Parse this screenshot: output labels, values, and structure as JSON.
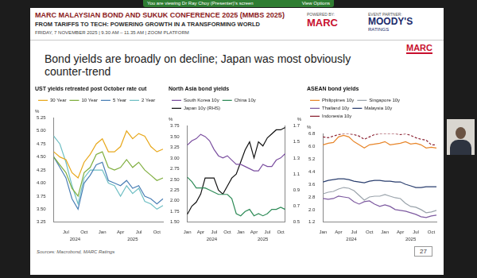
{
  "zoom_bar": {
    "text": "You are viewing Dr Ray Choy (Presenter)'s screen",
    "button": "View Options"
  },
  "header": {
    "title": "MARC MALAYSIAN BOND AND SUKUK CONFERENCE 2025 (MMBS 2025)",
    "subtitle": "FROM TARIFFS TO TECH: POWERING GROWTH IN A TRANSFORMING WORLD",
    "details": "FRIDAY, 7 NOVEMBER 2025  |  9.30 AM – 11.35 AM  |  ZOOM PLATFORM",
    "powered_by_label": "POWERED BY:",
    "powered_by": "MARC",
    "partner_label": "EVENT PARTNER:",
    "partner": "MOODY'S",
    "partner_sub": "RATINGS"
  },
  "slide": {
    "logo": "MARC",
    "title": "Bond yields are broadly on decline; Japan was most obviously counter-trend",
    "source": "Sources: Macrobond, MARC Ratings",
    "page": "27"
  },
  "chart_data": [
    {
      "type": "line",
      "title": "UST yields retreated post October rate cut",
      "categories": [
        null,
        null,
        "Jul",
        null,
        null,
        "Oct",
        null,
        null,
        "Jan",
        null,
        null,
        "Apr",
        null,
        null,
        "Jul",
        null,
        null,
        "Oct",
        null
      ],
      "x_groups": [
        {
          "label": "2024",
          "from": 0,
          "to": 7
        },
        {
          "label": "2025",
          "from": 8,
          "to": 18
        }
      ],
      "ylabel": "%",
      "ylim": [
        3.25,
        5.25
      ],
      "yticks": [
        3.25,
        {
          "value": 3.5,
          "label": "3.50"
        },
        3.75,
        {
          "value": 4,
          "label": "4.00"
        },
        4.25,
        {
          "value": 4.5,
          "label": "4.50"
        },
        4.75,
        {
          "value": 5,
          "label": "5.00"
        },
        5.25
      ],
      "grid": false,
      "legend": "top",
      "series": [
        {
          "name": "30 Year",
          "color": "#e8a81c",
          "values": [
            4.6,
            4.5,
            4.45,
            4.2,
            4.1,
            4.4,
            4.55,
            4.75,
            4.85,
            4.6,
            4.6,
            4.7,
            5.0,
            4.85,
            4.95,
            4.9,
            4.7,
            4.6,
            4.65
          ]
        },
        {
          "name": "10 Year",
          "color": "#7fae3e",
          "values": [
            4.5,
            4.35,
            4.2,
            3.9,
            3.75,
            4.2,
            4.3,
            4.55,
            4.6,
            4.3,
            4.25,
            4.3,
            4.45,
            4.3,
            4.4,
            4.25,
            4.15,
            4.05,
            4.1
          ]
        },
        {
          "name": "5 Year",
          "color": "#4a7fb5",
          "values": [
            4.5,
            4.3,
            4.1,
            3.7,
            3.5,
            4.0,
            4.15,
            4.35,
            4.4,
            4.05,
            4.0,
            3.95,
            4.05,
            3.9,
            3.95,
            3.75,
            3.7,
            3.6,
            3.7
          ]
        },
        {
          "name": "2 Year",
          "color": "#6fbfc4",
          "values": [
            4.9,
            4.75,
            4.4,
            3.95,
            3.6,
            4.1,
            4.25,
            4.25,
            4.25,
            4.0,
            3.95,
            3.75,
            3.95,
            3.8,
            3.9,
            3.65,
            3.6,
            3.5,
            3.57
          ]
        }
      ]
    },
    {
      "type": "line",
      "title": "North Asia bond yields",
      "categories": [
        "Jan",
        null,
        null,
        "Apr",
        null,
        null,
        "Jul",
        null,
        null,
        "Oct",
        null,
        null,
        "Jan",
        null,
        null,
        "Apr",
        null,
        null,
        "Jul",
        null,
        null,
        "Oct",
        null
      ],
      "x_groups": [
        {
          "label": "2024",
          "from": 0,
          "to": 11
        },
        {
          "label": "2025",
          "from": 12,
          "to": 22
        }
      ],
      "ylabel": "%",
      "ylim": [
        1.5,
        3.75
      ],
      "yticks": [
        {
          "value": 1.5,
          "label": "1.50"
        },
        1.75,
        {
          "value": 2,
          "label": "2.00"
        },
        2.25,
        {
          "value": 2.5,
          "label": "2.50"
        },
        2.75,
        {
          "value": 3,
          "label": "3.00"
        },
        3.25,
        {
          "value": 3.5,
          "label": "3.50"
        },
        3.75
      ],
      "y2label": "%",
      "y2lim": [
        0.5,
        1.7
      ],
      "y2ticks": [
        0.5,
        0.7,
        0.9,
        1.1,
        1.3,
        1.5,
        1.7
      ],
      "grid": false,
      "legend": "top",
      "series": [
        {
          "name": "South Korea 10y",
          "color": "#7b4fa0",
          "values": [
            3.3,
            3.4,
            3.45,
            3.55,
            3.5,
            3.4,
            3.2,
            3.05,
            3.0,
            3.05,
            2.95,
            2.85,
            2.85,
            2.8,
            2.75,
            2.7,
            2.7,
            2.85,
            2.8,
            2.8,
            2.95,
            3.0,
            3.1
          ]
        },
        {
          "name": "China 10y",
          "color": "#2e8b57",
          "values": [
            2.55,
            2.45,
            2.3,
            2.3,
            2.3,
            2.25,
            2.2,
            2.15,
            2.15,
            2.15,
            2.05,
            1.7,
            1.65,
            1.75,
            1.8,
            1.65,
            1.7,
            1.65,
            1.7,
            1.8,
            1.8,
            1.85,
            1.8
          ]
        },
        {
          "name": "Japan 10y (RHS)",
          "color": "#111111",
          "axis": "y2",
          "values": [
            0.6,
            0.7,
            0.75,
            0.85,
            1.05,
            1.05,
            1.05,
            0.9,
            0.85,
            0.95,
            1.05,
            1.1,
            1.25,
            1.4,
            1.5,
            1.3,
            1.5,
            1.45,
            1.55,
            1.6,
            1.65,
            1.65,
            1.68
          ]
        }
      ]
    },
    {
      "type": "line",
      "title": "ASEAN bond yields",
      "categories": [
        "Jan",
        null,
        null,
        "Apr",
        null,
        null,
        "Jul",
        null,
        null,
        "Oct",
        null,
        null,
        "Jan",
        null,
        null,
        "Apr",
        null,
        null,
        "Jul",
        null,
        null,
        "Oct",
        null
      ],
      "x_groups": [
        {
          "label": "2024",
          "from": 0,
          "to": 11
        },
        {
          "label": "2025",
          "from": 12,
          "to": 22
        }
      ],
      "ylabel": "%",
      "ylim": [
        1.2,
        6.8
      ],
      "yticks": [
        1.2,
        {
          "value": 2,
          "label": "2.0"
        },
        2.8,
        3.6,
        4.4,
        5.2,
        {
          "value": 6,
          "label": "6.0"
        },
        6.8
      ],
      "grid": false,
      "legend": "top",
      "series": [
        {
          "name": "Philippines 10y",
          "color": "#e8862a",
          "values": [
            6.1,
            6.2,
            6.25,
            6.6,
            6.7,
            6.6,
            6.3,
            6.1,
            5.9,
            6.1,
            6.15,
            6.2,
            6.3,
            6.1,
            6.15,
            6.2,
            6.3,
            6.15,
            6.2,
            6.1,
            5.9,
            5.95,
            5.9
          ]
        },
        {
          "name": "Singapore 10y",
          "color": "#9aa3ab",
          "values": [
            3.0,
            3.1,
            3.15,
            3.3,
            3.4,
            3.35,
            3.2,
            2.9,
            2.6,
            2.8,
            2.85,
            2.85,
            2.95,
            2.85,
            2.75,
            2.7,
            2.4,
            2.2,
            2.15,
            2.0,
            1.8,
            1.85,
            1.95
          ]
        },
        {
          "name": "Thailand 10y",
          "color": "#7d5aa0",
          "values": [
            2.7,
            2.65,
            2.7,
            2.85,
            2.8,
            2.75,
            2.5,
            2.35,
            2.5,
            2.55,
            2.35,
            2.2,
            2.3,
            2.2,
            2.0,
            1.95,
            1.9,
            1.8,
            1.7,
            1.55,
            1.5,
            1.6,
            1.65
          ]
        },
        {
          "name": "Malaysia 10y",
          "color": "#2a3e6e",
          "values": [
            3.75,
            3.85,
            3.9,
            3.95,
            3.95,
            3.9,
            3.8,
            3.75,
            3.7,
            3.8,
            3.85,
            3.85,
            3.8,
            3.8,
            3.75,
            3.75,
            3.6,
            3.5,
            3.4,
            3.4,
            3.45,
            3.45,
            3.45
          ]
        },
        {
          "name": "Indonesia 10y",
          "color": "#8b2232",
          "line_style": "dashed",
          "values": [
            6.6,
            6.55,
            6.65,
            6.75,
            6.8,
            6.8,
            6.75,
            6.65,
            6.45,
            6.6,
            6.75,
            6.8,
            6.8,
            6.8,
            6.8,
            6.75,
            6.8,
            6.7,
            6.55,
            6.45,
            6.4,
            6.1,
            6.1
          ]
        }
      ]
    }
  ]
}
